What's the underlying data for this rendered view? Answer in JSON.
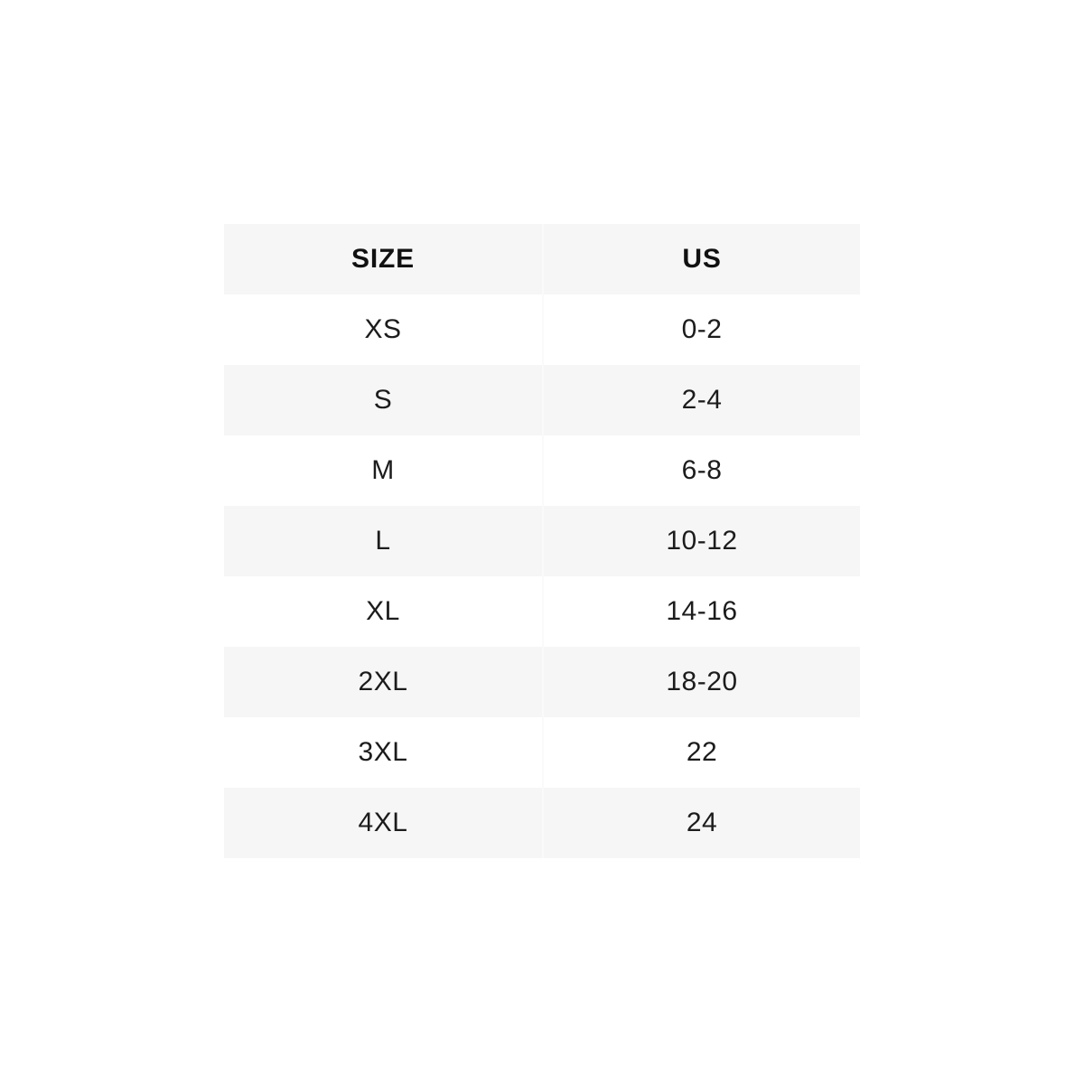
{
  "table": {
    "title": "size-chart",
    "columns": {
      "size_label": "SIZE",
      "us_label": "US"
    },
    "rows": [
      {
        "size": "XS",
        "us": "0-2"
      },
      {
        "size": "S",
        "us": "2-4"
      },
      {
        "size": "M",
        "us": "6-8"
      },
      {
        "size": "L",
        "us": "10-12"
      },
      {
        "size": "XL",
        "us": "14-16"
      },
      {
        "size": "2XL",
        "us": "18-20"
      },
      {
        "size": "3XL",
        "us": "22"
      },
      {
        "size": "4XL",
        "us": "24"
      }
    ],
    "colors": {
      "header_bg": "#f6f6f6",
      "zebra_bg": "#f6f6f6",
      "row_bg": "#ffffff",
      "text": "#1c1c1c",
      "divider": "#fafafa"
    }
  }
}
